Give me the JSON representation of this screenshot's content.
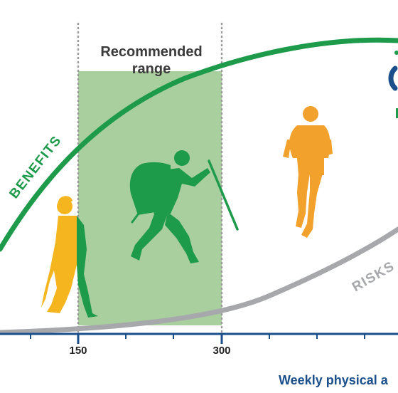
{
  "chart_data": {
    "type": "line",
    "title": "",
    "xlabel": "Weekly physical a",
    "ylabel": "",
    "x_tick_labels": [
      "150",
      "300"
    ],
    "series": [
      {
        "name": "BENEFITS",
        "color": "#1e9a4b"
      },
      {
        "name": "RISKS",
        "color": "#a6a8ab"
      }
    ],
    "annotations": {
      "recommended_range": {
        "line1": "Recommended",
        "line2": "range",
        "from": 150,
        "to": 300
      }
    },
    "grid": false
  },
  "colors": {
    "green": "#1e9a4b",
    "grey": "#a6a8ab",
    "band": "#a9cf9e",
    "orange": "#f3a12d",
    "yellow": "#f5b51f",
    "axis": "#1a4f8b",
    "label_dark": "#3b3b3b"
  },
  "icons": [
    "walking-woman-icon",
    "hiker-icon",
    "runner-icon"
  ]
}
